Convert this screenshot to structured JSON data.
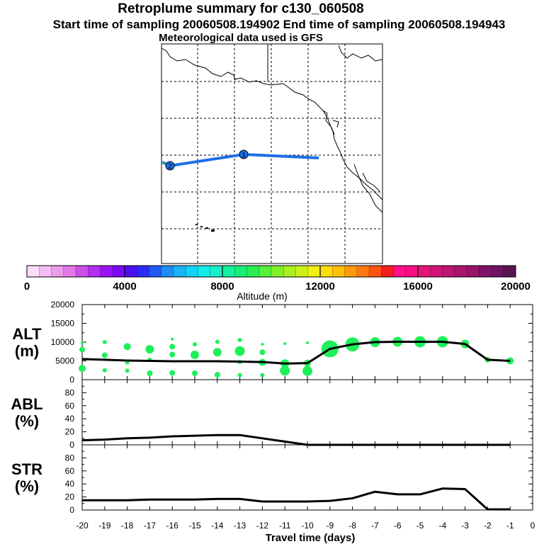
{
  "titles": {
    "line1": "Retroplume summary for c130_060508",
    "line2": "Start time of sampling 20060508.194902     End time of sampling 20060508.194943",
    "line3": "Meteorological data used is GFS"
  },
  "map": {
    "trajectory_color": "#1e6ee8",
    "markers": [
      "1",
      "2"
    ]
  },
  "colorbar": {
    "label": "Altitude (m)",
    "tick_labels": [
      "0",
      "4000",
      "8000",
      "12000",
      "16000",
      "20000"
    ],
    "colors": [
      "#fadcfa",
      "#f5bdf5",
      "#eb9ceb",
      "#e07ae6",
      "#cc4fe6",
      "#b32ef0",
      "#9914f5",
      "#7a0af5",
      "#4d0ff0",
      "#2b2bf5",
      "#1f5af5",
      "#1f8cf5",
      "#19b4f5",
      "#14d2f5",
      "#14ebeb",
      "#14f0c8",
      "#14f0a0",
      "#14f078",
      "#28f050",
      "#55f03c",
      "#82f028",
      "#aaf01e",
      "#cdf019",
      "#f0f014",
      "#ffdc0a",
      "#ffbe0a",
      "#ff9b0a",
      "#ff780f",
      "#ff5014",
      "#f01e1e",
      "#ff0f8c",
      "#f50f82",
      "#e61478",
      "#d21473",
      "#be1473",
      "#aa146e",
      "#961469",
      "#7d1464",
      "#6e1464",
      "#5a1450"
    ]
  },
  "chart_data": [
    {
      "type": "line",
      "name": "ALT",
      "ylabel": "ALT\n(m)",
      "ylim": [
        0,
        20000
      ],
      "yticks": [
        0,
        5000,
        10000,
        15000,
        20000
      ],
      "x": [
        -20,
        -19,
        -18,
        -17,
        -16,
        -15,
        -14,
        -13,
        -12,
        -11,
        -10,
        -9,
        -8,
        -7,
        -6,
        -5,
        -4,
        -3,
        -2,
        -1
      ],
      "values": [
        5500,
        5300,
        5100,
        5000,
        4900,
        4900,
        4900,
        4800,
        4700,
        4300,
        4400,
        8200,
        9400,
        10000,
        10100,
        10100,
        10100,
        9500,
        5300,
        5000
      ],
      "bubbles": [
        {
          "x": -20,
          "y": 3000,
          "r": 5
        },
        {
          "x": -20,
          "y": 8000,
          "r": 4
        },
        {
          "x": -20,
          "y": 9800,
          "r": 2
        },
        {
          "x": -19,
          "y": 2500,
          "r": 3
        },
        {
          "x": -19,
          "y": 6500,
          "r": 4
        },
        {
          "x": -19,
          "y": 10000,
          "r": 3
        },
        {
          "x": -18,
          "y": 2400,
          "r": 3
        },
        {
          "x": -18,
          "y": 4600,
          "r": 3
        },
        {
          "x": -18,
          "y": 8800,
          "r": 5
        },
        {
          "x": -17,
          "y": 1700,
          "r": 4
        },
        {
          "x": -17,
          "y": 5300,
          "r": 3
        },
        {
          "x": -17,
          "y": 8100,
          "r": 6
        },
        {
          "x": -16,
          "y": 1800,
          "r": 4
        },
        {
          "x": -16,
          "y": 6700,
          "r": 4
        },
        {
          "x": -16,
          "y": 8800,
          "r": 4
        },
        {
          "x": -16,
          "y": 10800,
          "r": 2
        },
        {
          "x": -15,
          "y": 1700,
          "r": 4
        },
        {
          "x": -15,
          "y": 6600,
          "r": 6
        },
        {
          "x": -15,
          "y": 9400,
          "r": 3
        },
        {
          "x": -14,
          "y": 1300,
          "r": 4
        },
        {
          "x": -14,
          "y": 7300,
          "r": 6
        },
        {
          "x": -14,
          "y": 10100,
          "r": 3
        },
        {
          "x": -13,
          "y": 1200,
          "r": 3
        },
        {
          "x": -13,
          "y": 4700,
          "r": 3
        },
        {
          "x": -13,
          "y": 7600,
          "r": 7
        },
        {
          "x": -13,
          "y": 10600,
          "r": 3
        },
        {
          "x": -12,
          "y": 1200,
          "r": 3
        },
        {
          "x": -12,
          "y": 4600,
          "r": 5
        },
        {
          "x": -12,
          "y": 7300,
          "r": 4
        },
        {
          "x": -12,
          "y": 9400,
          "r": 2
        },
        {
          "x": -11,
          "y": 2400,
          "r": 7
        },
        {
          "x": -11,
          "y": 4300,
          "r": 6
        },
        {
          "x": -11,
          "y": 9600,
          "r": 2
        },
        {
          "x": -10,
          "y": 2300,
          "r": 7
        },
        {
          "x": -10,
          "y": 4400,
          "r": 5
        },
        {
          "x": -10,
          "y": 9800,
          "r": 2
        },
        {
          "x": -9,
          "y": 8200,
          "r": 12
        },
        {
          "x": -8,
          "y": 9400,
          "r": 10
        },
        {
          "x": -7,
          "y": 10000,
          "r": 7
        },
        {
          "x": -6,
          "y": 10100,
          "r": 7
        },
        {
          "x": -5,
          "y": 10100,
          "r": 8
        },
        {
          "x": -4,
          "y": 10100,
          "r": 8
        },
        {
          "x": -3,
          "y": 9500,
          "r": 6
        },
        {
          "x": -2,
          "y": 5300,
          "r": 4
        },
        {
          "x": -1,
          "y": 5000,
          "r": 5
        }
      ]
    },
    {
      "type": "line",
      "name": "ABL",
      "ylabel": "ABL\n(%)",
      "ylim": [
        0,
        100
      ],
      "yticks": [
        0,
        20,
        40,
        60,
        80
      ],
      "x": [
        -20,
        -19,
        -18,
        -17,
        -16,
        -15,
        -14,
        -13,
        -12,
        -11,
        -10,
        -9,
        -8,
        -7,
        -6,
        -5,
        -4,
        -3,
        -2,
        -1
      ],
      "values": [
        7,
        8,
        10,
        11,
        13,
        14,
        15,
        15,
        10,
        5,
        0,
        0,
        0,
        0,
        0,
        0,
        0,
        0,
        0,
        0
      ]
    },
    {
      "type": "line",
      "name": "STR",
      "ylabel": "STR\n(%)",
      "ylim": [
        0,
        100
      ],
      "yticks": [
        0,
        20,
        40,
        60,
        80
      ],
      "x": [
        -20,
        -19,
        -18,
        -17,
        -16,
        -15,
        -14,
        -13,
        -12,
        -11,
        -10,
        -9,
        -8,
        -7,
        -6,
        -5,
        -4,
        -3,
        -2,
        -1
      ],
      "values": [
        15,
        15,
        15,
        16,
        16,
        16,
        17,
        17,
        13,
        13,
        13,
        14,
        18,
        28,
        24,
        24,
        33,
        32,
        1,
        1
      ],
      "xlabel": "Travel time (days)",
      "xlim": [
        -20,
        0
      ],
      "xtick_labels": [
        "-20",
        "-19",
        "-18",
        "-17",
        "-16",
        "-15",
        "-14",
        "-13",
        "-12",
        "-11",
        "-10",
        "-9",
        "-8",
        "-7",
        "-6",
        "-5",
        "-4",
        "-3",
        "-2",
        "-1",
        "0"
      ]
    }
  ]
}
